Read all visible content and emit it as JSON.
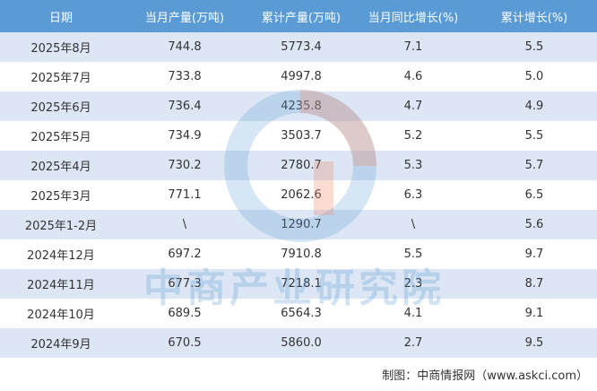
{
  "table": {
    "header": [
      "日期",
      "当月产量(万吨)",
      "累计产量(万吨)",
      "当月同比增长(%)",
      "累计增长(%)"
    ],
    "rows": [
      [
        "2025年8月",
        "744.8",
        "5773.4",
        "7.1",
        "5.5"
      ],
      [
        "2025年7月",
        "733.8",
        "4997.8",
        "4.6",
        "5.0"
      ],
      [
        "2025年6月",
        "736.4",
        "4235.8",
        "4.7",
        "4.9"
      ],
      [
        "2025年5月",
        "734.9",
        "3503.7",
        "5.2",
        "5.5"
      ],
      [
        "2025年4月",
        "730.2",
        "2780.7",
        "5.3",
        "5.7"
      ],
      [
        "2025年3月",
        "771.1",
        "2062.6",
        "6.3",
        "6.5"
      ],
      [
        "2025年1-2月",
        "\\",
        "1290.7",
        "\\",
        "5.6"
      ],
      [
        "2024年12月",
        "697.2",
        "7910.8",
        "5.5",
        "9.7"
      ],
      [
        "2024年11月",
        "677.3",
        "7218.1",
        "2.3",
        "8.7"
      ],
      [
        "2024年10月",
        "689.5",
        "6564.3",
        "4.1",
        "9.1"
      ],
      [
        "2024年9月",
        "670.5",
        "5860.0",
        "2.7",
        "9.5"
      ]
    ]
  },
  "watermark": "中商产业研究院",
  "footer": "制图：中商情报网（www.askci.com）"
}
